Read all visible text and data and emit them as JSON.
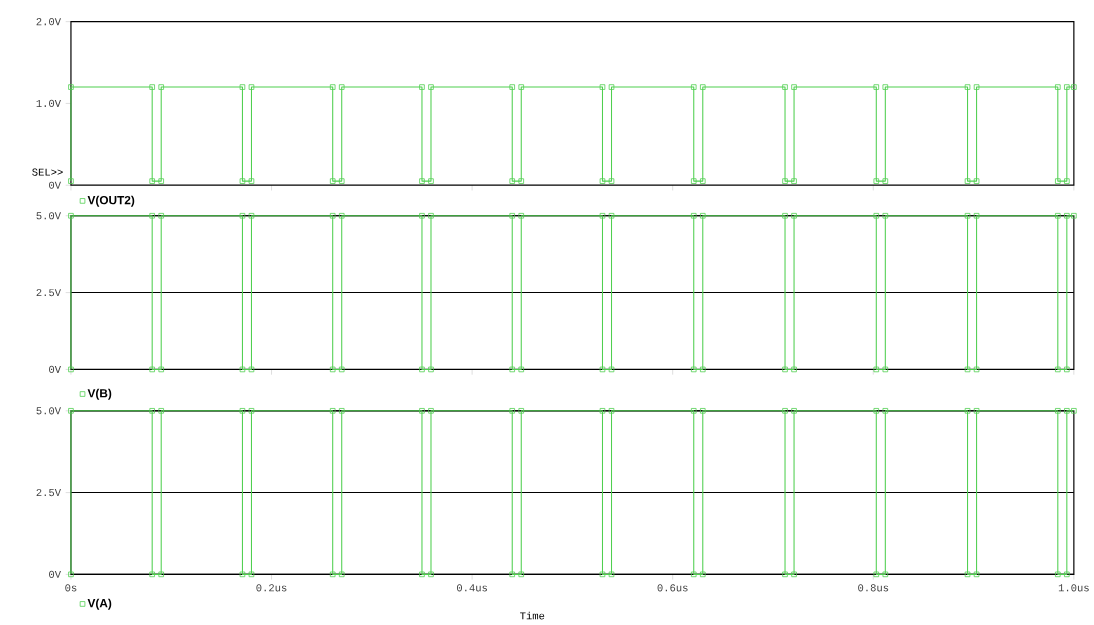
{
  "chart_data": [
    {
      "type": "line",
      "tick_labels": "y",
      "legend": "bottom left",
      "marker": "square",
      "grid": false,
      "annotations": [
        "SEL>>"
      ],
      "xlim": [
        0,
        1.0
      ],
      "xticks": [
        0,
        0.2,
        0.4,
        0.6,
        0.8,
        1.0
      ],
      "ylim": [
        0,
        2.0
      ],
      "yticks": [
        {
          "value": 0,
          "label": "0V"
        },
        {
          "value": 1.0,
          "label": "1.0V"
        },
        {
          "value": 2.0,
          "label": "2.0V"
        }
      ],
      "x": [
        0,
        0,
        0.081,
        0.081,
        0.09,
        0.09,
        0.171,
        0.171,
        0.18,
        0.18,
        0.261,
        0.261,
        0.27,
        0.27,
        0.35,
        0.35,
        0.359,
        0.359,
        0.44,
        0.44,
        0.449,
        0.449,
        0.53,
        0.53,
        0.539,
        0.539,
        0.621,
        0.621,
        0.63,
        0.63,
        0.712,
        0.712,
        0.721,
        0.721,
        0.803,
        0.803,
        0.812,
        0.812,
        0.894,
        0.894,
        0.903,
        0.903,
        0.984,
        0.984,
        0.993,
        0.993,
        1.0
      ],
      "series": [
        {
          "name": "V(OUT2)",
          "color": "#4fcf4f",
          "values": [
            0.05,
            1.2,
            1.2,
            0.05,
            0.05,
            1.2,
            1.2,
            0.05,
            0.05,
            1.2,
            1.2,
            0.05,
            0.05,
            1.2,
            1.2,
            0.05,
            0.05,
            1.2,
            1.2,
            0.05,
            0.05,
            1.2,
            1.2,
            0.05,
            0.05,
            1.2,
            1.2,
            0.05,
            0.05,
            1.2,
            1.2,
            0.05,
            0.05,
            1.2,
            1.2,
            0.05,
            0.05,
            1.2,
            1.2,
            0.05,
            0.05,
            1.2,
            1.2,
            0.05,
            0.05,
            1.2,
            1.2
          ]
        }
      ]
    },
    {
      "type": "line",
      "tick_labels": "y",
      "legend": "bottom left",
      "marker": "square",
      "grid": "y",
      "xlim": [
        0,
        1.0
      ],
      "xticks": [
        0,
        0.2,
        0.4,
        0.6,
        0.8,
        1.0
      ],
      "ylim": [
        0,
        5.0
      ],
      "yticks": [
        {
          "value": 0,
          "label": "0V"
        },
        {
          "value": 2.5,
          "label": "2.5V"
        },
        {
          "value": 5.0,
          "label": "5.0V"
        }
      ],
      "x": [
        0,
        0,
        0.081,
        0.081,
        0.09,
        0.09,
        0.171,
        0.171,
        0.18,
        0.18,
        0.261,
        0.261,
        0.27,
        0.27,
        0.35,
        0.35,
        0.359,
        0.359,
        0.44,
        0.44,
        0.449,
        0.449,
        0.53,
        0.53,
        0.539,
        0.539,
        0.621,
        0.621,
        0.63,
        0.63,
        0.712,
        0.712,
        0.721,
        0.721,
        0.803,
        0.803,
        0.812,
        0.812,
        0.894,
        0.894,
        0.903,
        0.903,
        0.984,
        0.984,
        0.993,
        0.993,
        1.0
      ],
      "series": [
        {
          "name": "V(B)",
          "color": "#4fcf4f",
          "values": [
            0,
            5,
            5,
            0,
            0,
            5,
            5,
            0,
            0,
            5,
            5,
            0,
            0,
            5,
            5,
            0,
            0,
            5,
            5,
            0,
            0,
            5,
            5,
            0,
            0,
            5,
            5,
            0,
            0,
            5,
            5,
            0,
            0,
            5,
            5,
            0,
            0,
            5,
            5,
            0,
            0,
            5,
            5,
            0,
            0,
            5,
            5
          ]
        }
      ]
    },
    {
      "type": "line",
      "legend": "bottom left",
      "marker": "square",
      "grid": "y",
      "xlabel": "Time",
      "xlim": [
        0,
        1.0
      ],
      "xticks": [
        {
          "value": 0,
          "label": "0s"
        },
        {
          "value": 0.2,
          "label": "0.2us"
        },
        {
          "value": 0.4,
          "label": "0.4us"
        },
        {
          "value": 0.6,
          "label": "0.6us"
        },
        {
          "value": 0.8,
          "label": "0.8us"
        },
        {
          "value": 1.0,
          "label": "1.0us"
        }
      ],
      "ylim": [
        0,
        5.0
      ],
      "yticks": [
        {
          "value": 0,
          "label": "0V"
        },
        {
          "value": 2.5,
          "label": "2.5V"
        },
        {
          "value": 5.0,
          "label": "5.0V"
        }
      ],
      "x": [
        0,
        0,
        0.081,
        0.081,
        0.09,
        0.09,
        0.171,
        0.171,
        0.18,
        0.18,
        0.261,
        0.261,
        0.27,
        0.27,
        0.35,
        0.35,
        0.359,
        0.359,
        0.44,
        0.44,
        0.449,
        0.449,
        0.53,
        0.53,
        0.539,
        0.539,
        0.621,
        0.621,
        0.63,
        0.63,
        0.712,
        0.712,
        0.721,
        0.721,
        0.803,
        0.803,
        0.812,
        0.812,
        0.894,
        0.894,
        0.903,
        0.903,
        0.984,
        0.984,
        0.993,
        0.993,
        1.0
      ],
      "series": [
        {
          "name": "V(A)",
          "color": "#4fcf4f",
          "values": [
            0,
            5,
            5,
            0,
            0,
            5,
            5,
            0,
            0,
            5,
            5,
            0,
            0,
            5,
            5,
            0,
            0,
            5,
            5,
            0,
            0,
            5,
            5,
            0,
            0,
            5,
            5,
            0,
            0,
            5,
            5,
            0,
            0,
            5,
            5,
            0,
            0,
            5,
            5,
            0,
            0,
            5,
            5,
            0,
            0,
            5,
            5
          ]
        }
      ]
    }
  ]
}
